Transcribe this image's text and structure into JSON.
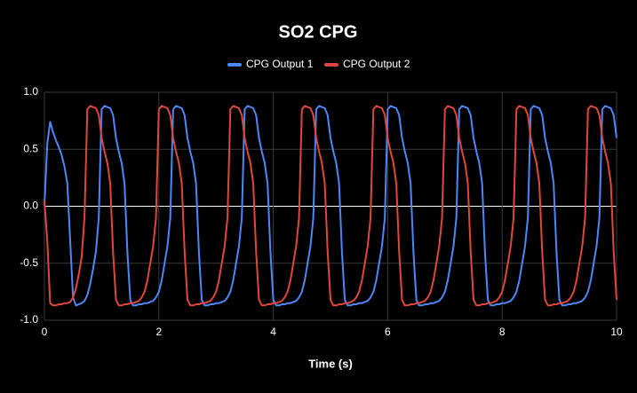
{
  "chart_data": {
    "type": "line",
    "title": "SO2 CPG",
    "xlabel": "Time (s)",
    "x": [
      0,
      0.05,
      0.1,
      0.15,
      0.2,
      0.25,
      0.3,
      0.35,
      0.4,
      0.45,
      0.5,
      0.55,
      0.6,
      0.65,
      0.7,
      0.75,
      0.8,
      0.85,
      0.9,
      0.95,
      1,
      1.05,
      1.1,
      1.15,
      1.2,
      1.25,
      1.3,
      1.35,
      1.4,
      1.45,
      1.5,
      1.55,
      1.6,
      1.65,
      1.7,
      1.75,
      1.8,
      1.85,
      1.9,
      1.95,
      2,
      2.05,
      2.1,
      2.15,
      2.2,
      2.25,
      2.3,
      2.35,
      2.4,
      2.45,
      2.5,
      2.55,
      2.6,
      2.65,
      2.7,
      2.75,
      2.8,
      2.85,
      2.9,
      2.95,
      3,
      3.05,
      3.1,
      3.15,
      3.2,
      3.25,
      3.3,
      3.35,
      3.4,
      3.45,
      3.5,
      3.55,
      3.6,
      3.65,
      3.7,
      3.75,
      3.8,
      3.85,
      3.9,
      3.95,
      4,
      4.05,
      4.1,
      4.15,
      4.2,
      4.25,
      4.3,
      4.35,
      4.4,
      4.45,
      4.5,
      4.55,
      4.6,
      4.65,
      4.7,
      4.75,
      4.8,
      4.85,
      4.9,
      4.95,
      5,
      5.05,
      5.1,
      5.15,
      5.2,
      5.25,
      5.3,
      5.35,
      5.4,
      5.45,
      5.5,
      5.55,
      5.6,
      5.65,
      5.7,
      5.75,
      5.8,
      5.85,
      5.9,
      5.95,
      6,
      6.05,
      6.1,
      6.15,
      6.2,
      6.25,
      6.3,
      6.35,
      6.4,
      6.45,
      6.5,
      6.55,
      6.6,
      6.65,
      6.7,
      6.75,
      6.8,
      6.85,
      6.9,
      6.95,
      7,
      7.05,
      7.1,
      7.15,
      7.2,
      7.25,
      7.3,
      7.35,
      7.4,
      7.45,
      7.5,
      7.55,
      7.6,
      7.65,
      7.7,
      7.75,
      7.8,
      7.85,
      7.9,
      7.95,
      8,
      8.05,
      8.1,
      8.15,
      8.2,
      8.25,
      8.3,
      8.35,
      8.4,
      8.45,
      8.5,
      8.55,
      8.6,
      8.65,
      8.7,
      8.75,
      8.8,
      8.85,
      8.9,
      8.95,
      9,
      9.05,
      9.1,
      9.15,
      9.2,
      9.25,
      9.3,
      9.35,
      9.4,
      9.45,
      9.5,
      9.55,
      9.6,
      9.65,
      9.7,
      9.75,
      9.8,
      9.85,
      9.9,
      9.95,
      10
    ],
    "series": [
      {
        "name": "CPG Output 1",
        "color": "#4f86f7",
        "values": [
          0,
          0.55,
          0.74,
          0.65,
          0.58,
          0.52,
          0.45,
          0.35,
          0.2,
          -0.3,
          -0.8,
          -0.87,
          -0.86,
          -0.85,
          -0.83,
          -0.78,
          -0.68,
          -0.55,
          -0.4,
          -0.1,
          0.85,
          0.88,
          0.87,
          0.86,
          0.8,
          0.6,
          0.48,
          0.38,
          0.2,
          -0.4,
          -0.82,
          -0.87,
          -0.87,
          -0.86,
          -0.86,
          -0.85,
          -0.85,
          -0.84,
          -0.83,
          -0.8,
          -0.75,
          -0.65,
          -0.5,
          -0.35,
          -0.1,
          0.85,
          0.88,
          0.87,
          0.86,
          0.8,
          0.6,
          0.48,
          0.38,
          0.2,
          -0.4,
          -0.82,
          -0.87,
          -0.87,
          -0.86,
          -0.86,
          -0.85,
          -0.85,
          -0.84,
          -0.83,
          -0.8,
          -0.75,
          -0.65,
          -0.5,
          -0.35,
          -0.1,
          0.85,
          0.88,
          0.87,
          0.86,
          0.8,
          0.6,
          0.48,
          0.38,
          0.2,
          -0.4,
          -0.82,
          -0.87,
          -0.87,
          -0.86,
          -0.86,
          -0.85,
          -0.85,
          -0.84,
          -0.83,
          -0.8,
          -0.75,
          -0.65,
          -0.5,
          -0.35,
          -0.1,
          0.85,
          0.88,
          0.87,
          0.86,
          0.8,
          0.6,
          0.48,
          0.38,
          0.2,
          -0.4,
          -0.82,
          -0.87,
          -0.87,
          -0.86,
          -0.86,
          -0.85,
          -0.85,
          -0.84,
          -0.83,
          -0.8,
          -0.75,
          -0.65,
          -0.5,
          -0.35,
          -0.1,
          0.85,
          0.88,
          0.87,
          0.86,
          0.8,
          0.6,
          0.48,
          0.38,
          0.2,
          -0.4,
          -0.82,
          -0.87,
          -0.87,
          -0.86,
          -0.86,
          -0.85,
          -0.85,
          -0.84,
          -0.83,
          -0.8,
          -0.75,
          -0.65,
          -0.5,
          -0.35,
          -0.1,
          0.85,
          0.88,
          0.87,
          0.86,
          0.8,
          0.6,
          0.48,
          0.38,
          0.2,
          -0.4,
          -0.82,
          -0.87,
          -0.87,
          -0.86,
          -0.86,
          -0.85,
          -0.85,
          -0.84,
          -0.83,
          -0.8,
          -0.75,
          -0.65,
          -0.5,
          -0.35,
          -0.1,
          0.85,
          0.88,
          0.87,
          0.86,
          0.8,
          0.6,
          0.48,
          0.38,
          0.2,
          -0.4,
          -0.82,
          -0.87,
          -0.87,
          -0.86,
          -0.86,
          -0.85,
          -0.85,
          -0.84,
          -0.83,
          -0.8,
          -0.75,
          -0.65,
          -0.5,
          -0.35,
          -0.1,
          0.85,
          0.88,
          0.87,
          0.86,
          0.8,
          0.6
        ]
      },
      {
        "name": "CPG Output 2",
        "color": "#e0463e",
        "values": [
          0.05,
          -0.3,
          -0.85,
          -0.87,
          -0.87,
          -0.86,
          -0.86,
          -0.85,
          -0.85,
          -0.84,
          -0.8,
          -0.72,
          -0.6,
          -0.45,
          -0.1,
          0.85,
          0.88,
          0.87,
          0.86,
          0.8,
          0.6,
          0.48,
          0.38,
          0.2,
          -0.4,
          -0.82,
          -0.87,
          -0.87,
          -0.86,
          -0.86,
          -0.85,
          -0.85,
          -0.84,
          -0.83,
          -0.8,
          -0.75,
          -0.65,
          -0.5,
          -0.35,
          -0.1,
          0.85,
          0.88,
          0.87,
          0.86,
          0.8,
          0.6,
          0.48,
          0.38,
          0.2,
          -0.4,
          -0.82,
          -0.87,
          -0.87,
          -0.86,
          -0.86,
          -0.85,
          -0.85,
          -0.84,
          -0.83,
          -0.8,
          -0.75,
          -0.65,
          -0.5,
          -0.35,
          -0.1,
          0.85,
          0.88,
          0.87,
          0.86,
          0.8,
          0.6,
          0.48,
          0.38,
          0.2,
          -0.4,
          -0.82,
          -0.87,
          -0.87,
          -0.86,
          -0.86,
          -0.85,
          -0.85,
          -0.84,
          -0.83,
          -0.8,
          -0.75,
          -0.65,
          -0.5,
          -0.35,
          -0.1,
          0.85,
          0.88,
          0.87,
          0.86,
          0.8,
          0.6,
          0.48,
          0.38,
          0.2,
          -0.4,
          -0.82,
          -0.87,
          -0.87,
          -0.86,
          -0.86,
          -0.85,
          -0.85,
          -0.84,
          -0.83,
          -0.8,
          -0.75,
          -0.65,
          -0.5,
          -0.35,
          -0.1,
          0.85,
          0.88,
          0.87,
          0.86,
          0.8,
          0.6,
          0.48,
          0.38,
          0.2,
          -0.4,
          -0.82,
          -0.87,
          -0.87,
          -0.86,
          -0.86,
          -0.85,
          -0.85,
          -0.84,
          -0.83,
          -0.8,
          -0.75,
          -0.65,
          -0.5,
          -0.35,
          -0.1,
          0.85,
          0.88,
          0.87,
          0.86,
          0.8,
          0.6,
          0.48,
          0.38,
          0.2,
          -0.4,
          -0.82,
          -0.87,
          -0.87,
          -0.86,
          -0.86,
          -0.85,
          -0.85,
          -0.84,
          -0.83,
          -0.8,
          -0.75,
          -0.65,
          -0.5,
          -0.35,
          -0.1,
          0.85,
          0.88,
          0.87,
          0.86,
          0.8,
          0.6,
          0.48,
          0.38,
          0.2,
          -0.4,
          -0.82,
          -0.87,
          -0.87,
          -0.86,
          -0.86,
          -0.85,
          -0.85,
          -0.84,
          -0.83,
          -0.8,
          -0.75,
          -0.65,
          -0.5,
          -0.35,
          -0.1,
          0.85,
          0.88,
          0.87,
          0.86,
          0.8,
          0.6,
          0.48,
          0.38,
          0.2,
          -0.4,
          -0.82
        ]
      }
    ],
    "xlim": [
      0,
      10
    ],
    "xticks": [
      0,
      2,
      4,
      6,
      8,
      10
    ],
    "ylim": [
      -1,
      1
    ],
    "yticks": [
      {
        "value": -1,
        "label": "-1.0"
      },
      {
        "value": -0.5,
        "label": "-0.5"
      },
      {
        "value": 0,
        "label": "0.0"
      },
      {
        "value": 0.5,
        "label": "0.5"
      },
      {
        "value": 1,
        "label": "1.0"
      }
    ],
    "grid": true,
    "legend": "top"
  }
}
